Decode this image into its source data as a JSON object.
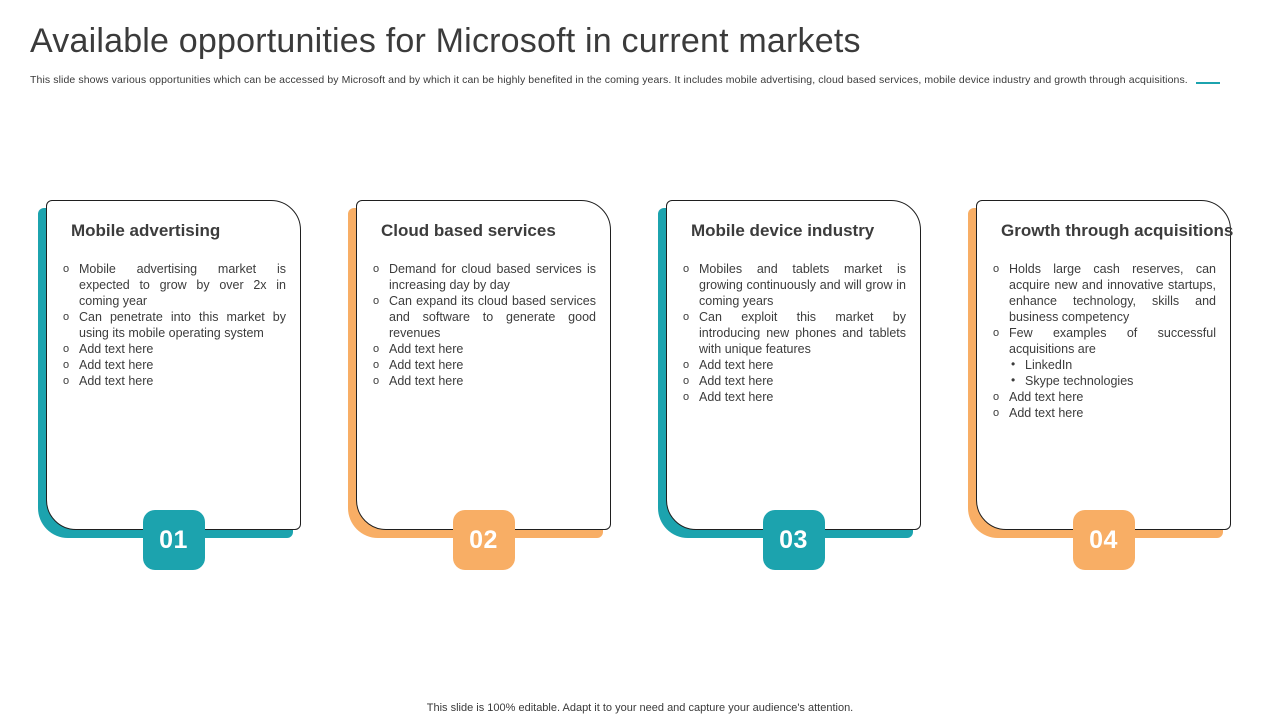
{
  "slide": {
    "title": "Available opportunities for Microsoft in current markets",
    "subtitle": "This slide shows various opportunities which can be accessed by Microsoft and by which it can be highly benefited in the coming years. It includes mobile  advertising, cloud based services, mobile device industry and growth through acquisitions.",
    "footer": "This slide is 100% editable.  Adapt it to your need and capture your audience's attention."
  },
  "colors": {
    "teal": "#1CA3AE",
    "orange": "#F8AE65",
    "text": "#3C3C3C"
  },
  "markers": {
    "bullet": "o",
    "sub_bullet": "•"
  },
  "cards": [
    {
      "id": "mobile-advertising",
      "number": "01",
      "accent": "teal",
      "title": "Mobile advertising",
      "bullets": [
        {
          "text": "Mobile advertising  market is expected to grow by over 2x in coming year"
        },
        {
          "text": "Can penetrate into this market by using its mobile  operating  system"
        },
        {
          "text": "Add text here"
        },
        {
          "text": "Add text here"
        },
        {
          "text": "Add text here"
        }
      ]
    },
    {
      "id": "cloud-based-services",
      "number": "02",
      "accent": "orange",
      "title": "Cloud based services",
      "bullets": [
        {
          "text": "Demand for cloud based services is increasing day by day"
        },
        {
          "text": "Can expand its cloud based services and software to generate good revenues"
        },
        {
          "text": "Add text here"
        },
        {
          "text": "Add text here"
        },
        {
          "text": "Add text here"
        }
      ]
    },
    {
      "id": "mobile-device-industry",
      "number": "03",
      "accent": "teal",
      "title": "Mobile device industry",
      "bullets": [
        {
          "text": "Mobiles and tablets market is growing continuously and will grow in coming years"
        },
        {
          "text": "Can exploit this market by introducing new phones and tablets with unique features"
        },
        {
          "text": "Add text here"
        },
        {
          "text": "Add text here"
        },
        {
          "text": "Add text here"
        }
      ]
    },
    {
      "id": "growth-through-acquisitions",
      "number": "04",
      "accent": "orange",
      "title": "Growth through acquisitions",
      "bullets": [
        {
          "text": "Holds large cash reserves,  can acquire new and innovative startups, enhance  technology, skills and business competency"
        },
        {
          "text": "Few examples of successful acquisitions are",
          "sub": [
            "LinkedIn",
            "Skype technologies"
          ]
        },
        {
          "text": "Add text here"
        },
        {
          "text": "Add text here"
        }
      ]
    }
  ]
}
